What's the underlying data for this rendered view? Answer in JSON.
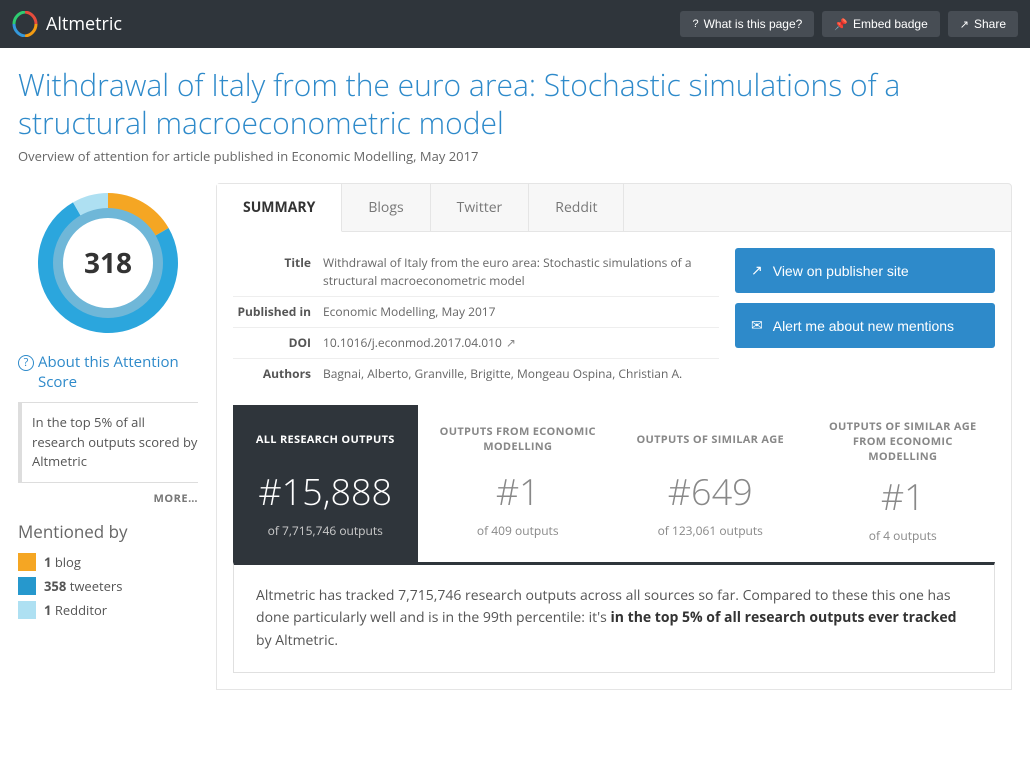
{
  "brand": "Altmetric",
  "topbar": {
    "what": "What is this page?",
    "embed": "Embed badge",
    "share": "Share"
  },
  "title": "Withdrawal of Italy from the euro area: Stochastic simulations of a structural macroeconometric model",
  "subtitle": "Overview of attention for article published in Economic Modelling, May 2017",
  "score": "318",
  "about_label": "About this Attention Score",
  "score_box": "In the top 5% of all research outputs scored by Altmetric",
  "more": "MORE…",
  "mentioned_heading": "Mentioned by",
  "mentions": [
    {
      "color": "#f5a623",
      "count": "1",
      "label": "blog"
    },
    {
      "color": "#2698cd",
      "count": "358",
      "label": "tweeters"
    },
    {
      "color": "#aee0f2",
      "count": "1",
      "label": "Redditor"
    }
  ],
  "tabs": [
    "SUMMARY",
    "Blogs",
    "Twitter",
    "Reddit"
  ],
  "info": {
    "title_label": "Title",
    "title_value": "Withdrawal of Italy from the euro area: Stochastic simulations of a structural macroeconometric model",
    "published_label": "Published in",
    "published_value": "Economic Modelling, May 2017",
    "doi_label": "DOI",
    "doi_value": "10.1016/j.econmod.2017.04.010",
    "authors_label": "Authors",
    "authors_value": "Bagnai, Alberto, Granville, Brigitte, Mongeau Ospina, Christian A."
  },
  "actions": {
    "publisher": "View on publisher site",
    "alert": "Alert me about new mentions"
  },
  "stats": [
    {
      "heading": "ALL RESEARCH OUTPUTS",
      "rank": "#15,888",
      "of": "of 7,715,746 outputs",
      "dark": true
    },
    {
      "heading": "OUTPUTS FROM ECONOMIC MODELLING",
      "rank": "#1",
      "of": "of 409 outputs",
      "dark": false
    },
    {
      "heading": "OUTPUTS OF SIMILAR AGE",
      "rank": "#649",
      "of": "of 123,061 outputs",
      "dark": false
    },
    {
      "heading": "OUTPUTS OF SIMILAR AGE FROM ECONOMIC MODELLING",
      "rank": "#1",
      "of": "of 4 outputs",
      "dark": false
    }
  ],
  "summary_text_1": "Altmetric has tracked 7,715,746 research outputs across all sources so far. Compared to these this one has done particularly well and is in the 99th percentile: it's ",
  "summary_text_bold": "in the top 5% of all research outputs ever tracked",
  "summary_text_2": " by Altmetric.",
  "donut_colors": {
    "twitter": "#2ba6dd",
    "blog": "#f5a623",
    "reddit": "#aee0f2",
    "inner": "#6fb7d8"
  }
}
